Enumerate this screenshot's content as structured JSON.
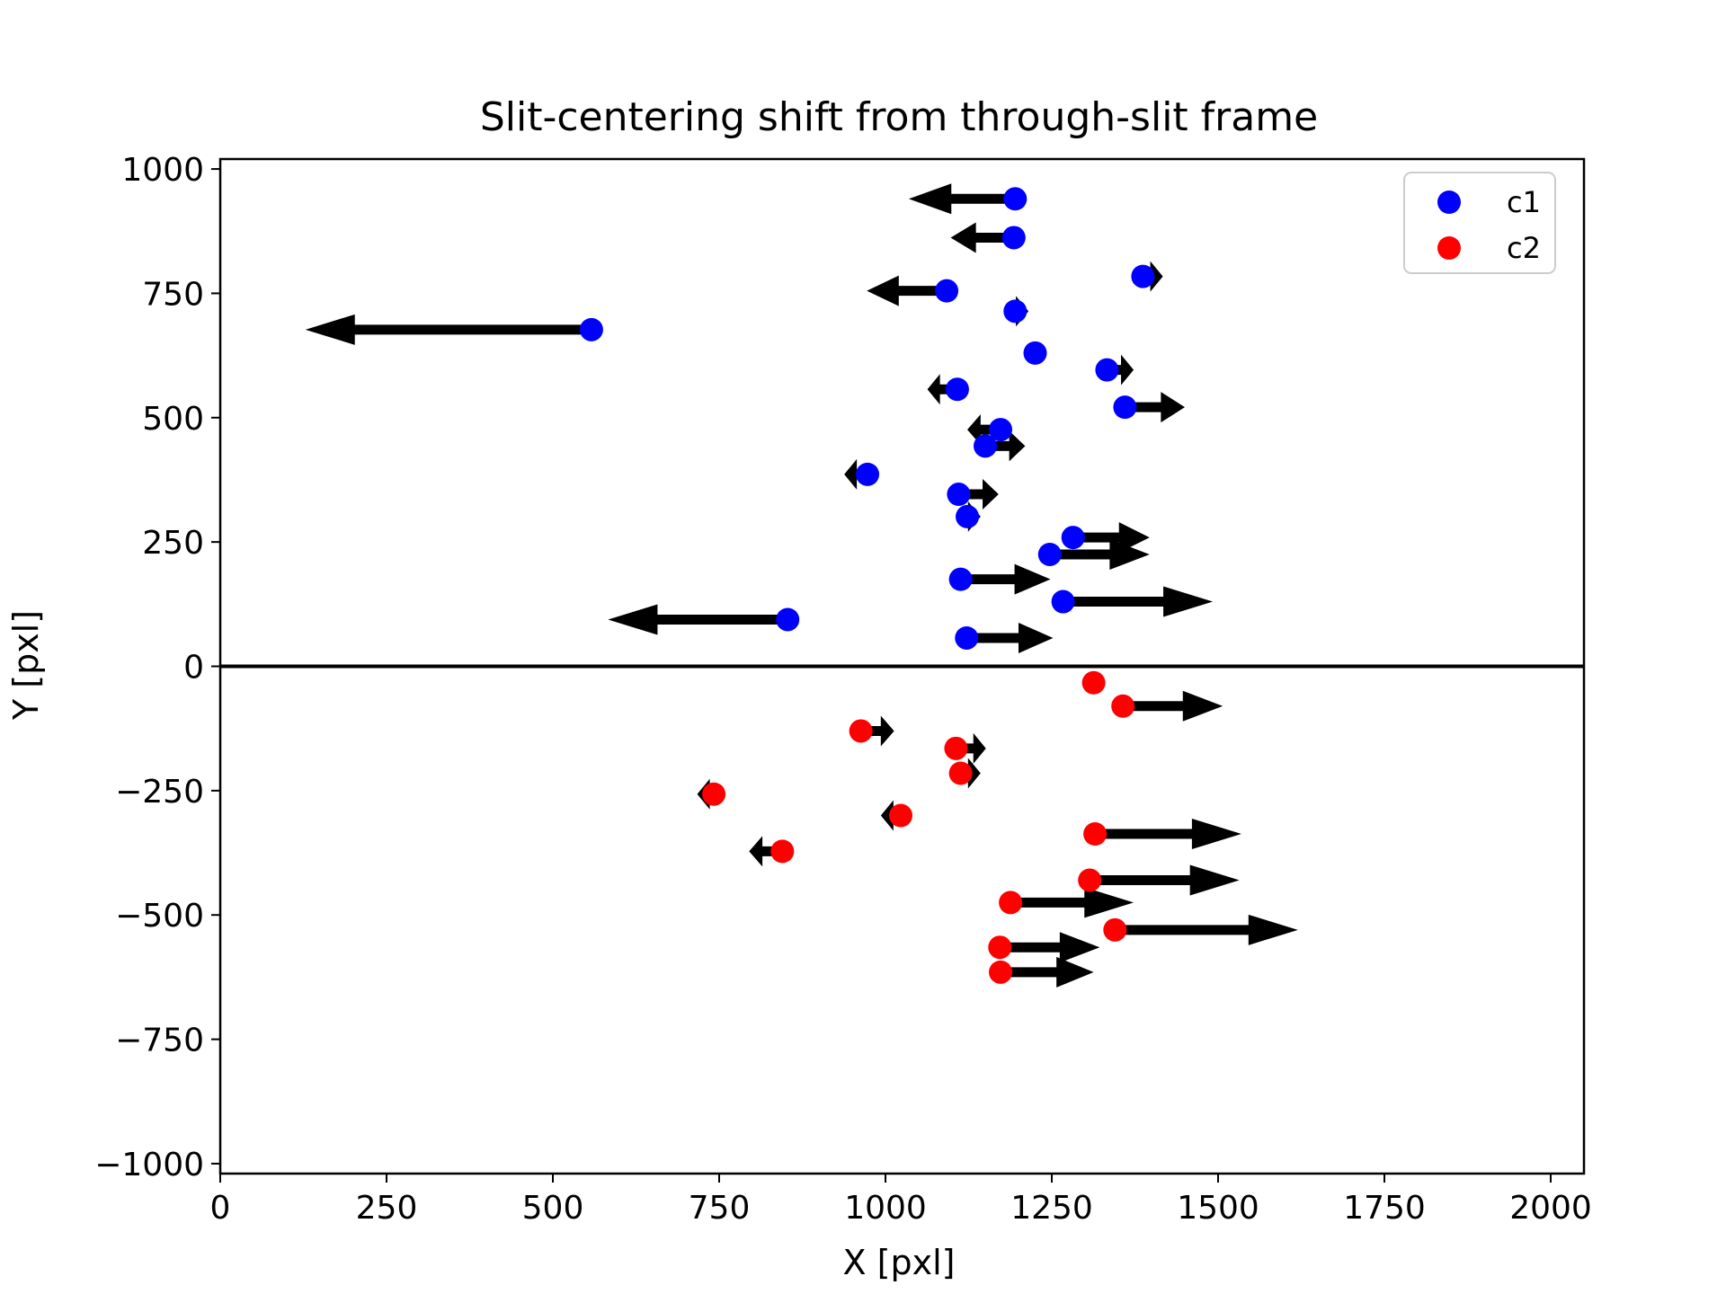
{
  "chart_data": {
    "type": "scatter",
    "title": "Slit-centering shift from through-slit frame",
    "xlabel": "X [pxl]",
    "ylabel": "Y [pxl]",
    "xlim": [
      0,
      2050
    ],
    "ylim": [
      -1020,
      1020
    ],
    "x_ticks": [
      0,
      250,
      500,
      750,
      1000,
      1250,
      1500,
      1750,
      2000
    ],
    "x_tick_labels": [
      "0",
      "250",
      "500",
      "750",
      "1000",
      "1250",
      "1500",
      "1750",
      "2000"
    ],
    "y_ticks": [
      1000,
      750,
      500,
      250,
      0,
      -250,
      -500,
      -750,
      -1000
    ],
    "y_tick_labels": [
      "1000",
      "750",
      "500",
      "250",
      "0",
      "−250",
      "−500",
      "−750",
      "−1000"
    ],
    "grid": false,
    "legend_position": "top-right",
    "reference_line_y": 0,
    "series": [
      {
        "name": "c1",
        "color": "#0000ff",
        "points": [
          {
            "x": 1195,
            "y": 940,
            "dx": -160
          },
          {
            "x": 1193,
            "y": 862,
            "dx": -95
          },
          {
            "x": 1387,
            "y": 784,
            "dx": 30
          },
          {
            "x": 1092,
            "y": 755,
            "dx": -120
          },
          {
            "x": 558,
            "y": 677,
            "dx": -430
          },
          {
            "x": 1195,
            "y": 714,
            "dx": 20
          },
          {
            "x": 1225,
            "y": 630,
            "dx": 0
          },
          {
            "x": 1333,
            "y": 596,
            "dx": 40
          },
          {
            "x": 1108,
            "y": 557,
            "dx": -45
          },
          {
            "x": 1360,
            "y": 521,
            "dx": 90
          },
          {
            "x": 1173,
            "y": 476,
            "dx": -50
          },
          {
            "x": 1150,
            "y": 443,
            "dx": 60
          },
          {
            "x": 973,
            "y": 386,
            "dx": -35
          },
          {
            "x": 1110,
            "y": 346,
            "dx": 60
          },
          {
            "x": 1123,
            "y": 301,
            "dx": 20
          },
          {
            "x": 1282,
            "y": 259,
            "dx": 115
          },
          {
            "x": 1247,
            "y": 225,
            "dx": 150
          },
          {
            "x": 1113,
            "y": 175,
            "dx": 135
          },
          {
            "x": 1267,
            "y": 130,
            "dx": 225
          },
          {
            "x": 853,
            "y": 94,
            "dx": -270
          },
          {
            "x": 1122,
            "y": 57,
            "dx": 130
          }
        ]
      },
      {
        "name": "c2",
        "color": "#ff0000",
        "points": [
          {
            "x": 1313,
            "y": -33,
            "dx": 0
          },
          {
            "x": 1357,
            "y": -80,
            "dx": 150
          },
          {
            "x": 963,
            "y": -130,
            "dx": 50
          },
          {
            "x": 1106,
            "y": -165,
            "dx": 45
          },
          {
            "x": 1113,
            "y": -215,
            "dx": 30
          },
          {
            "x": 742,
            "y": -257,
            "dx": -25
          },
          {
            "x": 1023,
            "y": -300,
            "dx": -30
          },
          {
            "x": 1315,
            "y": -337,
            "dx": 220
          },
          {
            "x": 845,
            "y": -372,
            "dx": -50
          },
          {
            "x": 1307,
            "y": -430,
            "dx": 225
          },
          {
            "x": 1188,
            "y": -475,
            "dx": 185
          },
          {
            "x": 1345,
            "y": -530,
            "dx": 275
          },
          {
            "x": 1172,
            "y": -565,
            "dx": 150
          },
          {
            "x": 1173,
            "y": -615,
            "dx": 140
          }
        ]
      }
    ]
  },
  "colors": {
    "arrow": "#000000",
    "axes": "#000000",
    "legend_border": "#cccccc"
  }
}
